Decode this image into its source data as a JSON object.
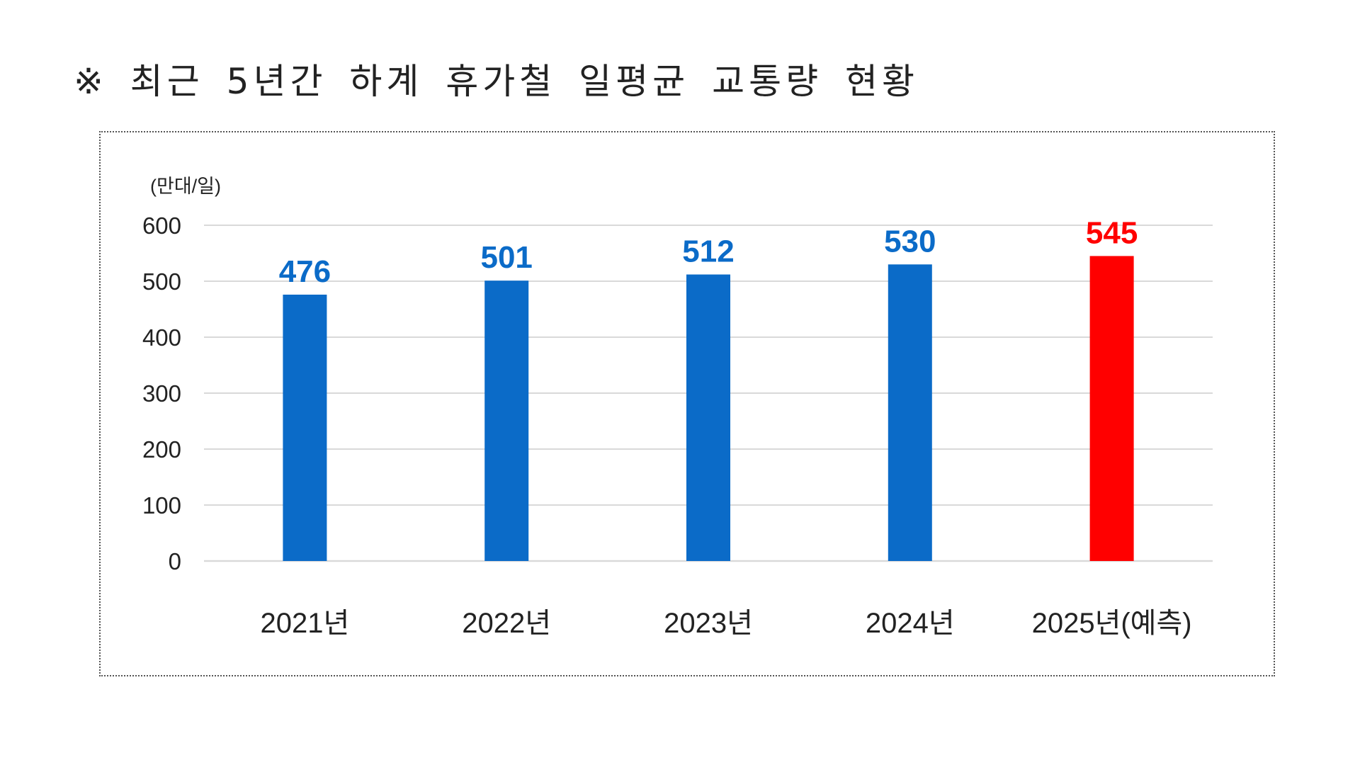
{
  "title": "※ 최근 5년간 하계 휴가철 일평균 교통량 현황",
  "colors": {
    "bar": "#0B6BC8",
    "highlight": "#FF0000",
    "grid": "#D9D9D9",
    "axis": "#D9D9D9",
    "text": "#222222"
  },
  "chart_data": {
    "type": "bar",
    "unit": "(만대/일)",
    "categories": [
      "2021년",
      "2022년",
      "2023년",
      "2024년",
      "2025년(예측)"
    ],
    "values": [
      476,
      501,
      512,
      530,
      545
    ],
    "data_labels": [
      "476",
      "501",
      "512",
      "530",
      "545"
    ],
    "highlight": [
      false,
      false,
      false,
      false,
      true
    ],
    "yticks": [
      "0",
      "100",
      "200",
      "300",
      "400",
      "500",
      "600"
    ],
    "ylim": [
      0,
      600
    ],
    "grid": true,
    "legend": "none"
  }
}
